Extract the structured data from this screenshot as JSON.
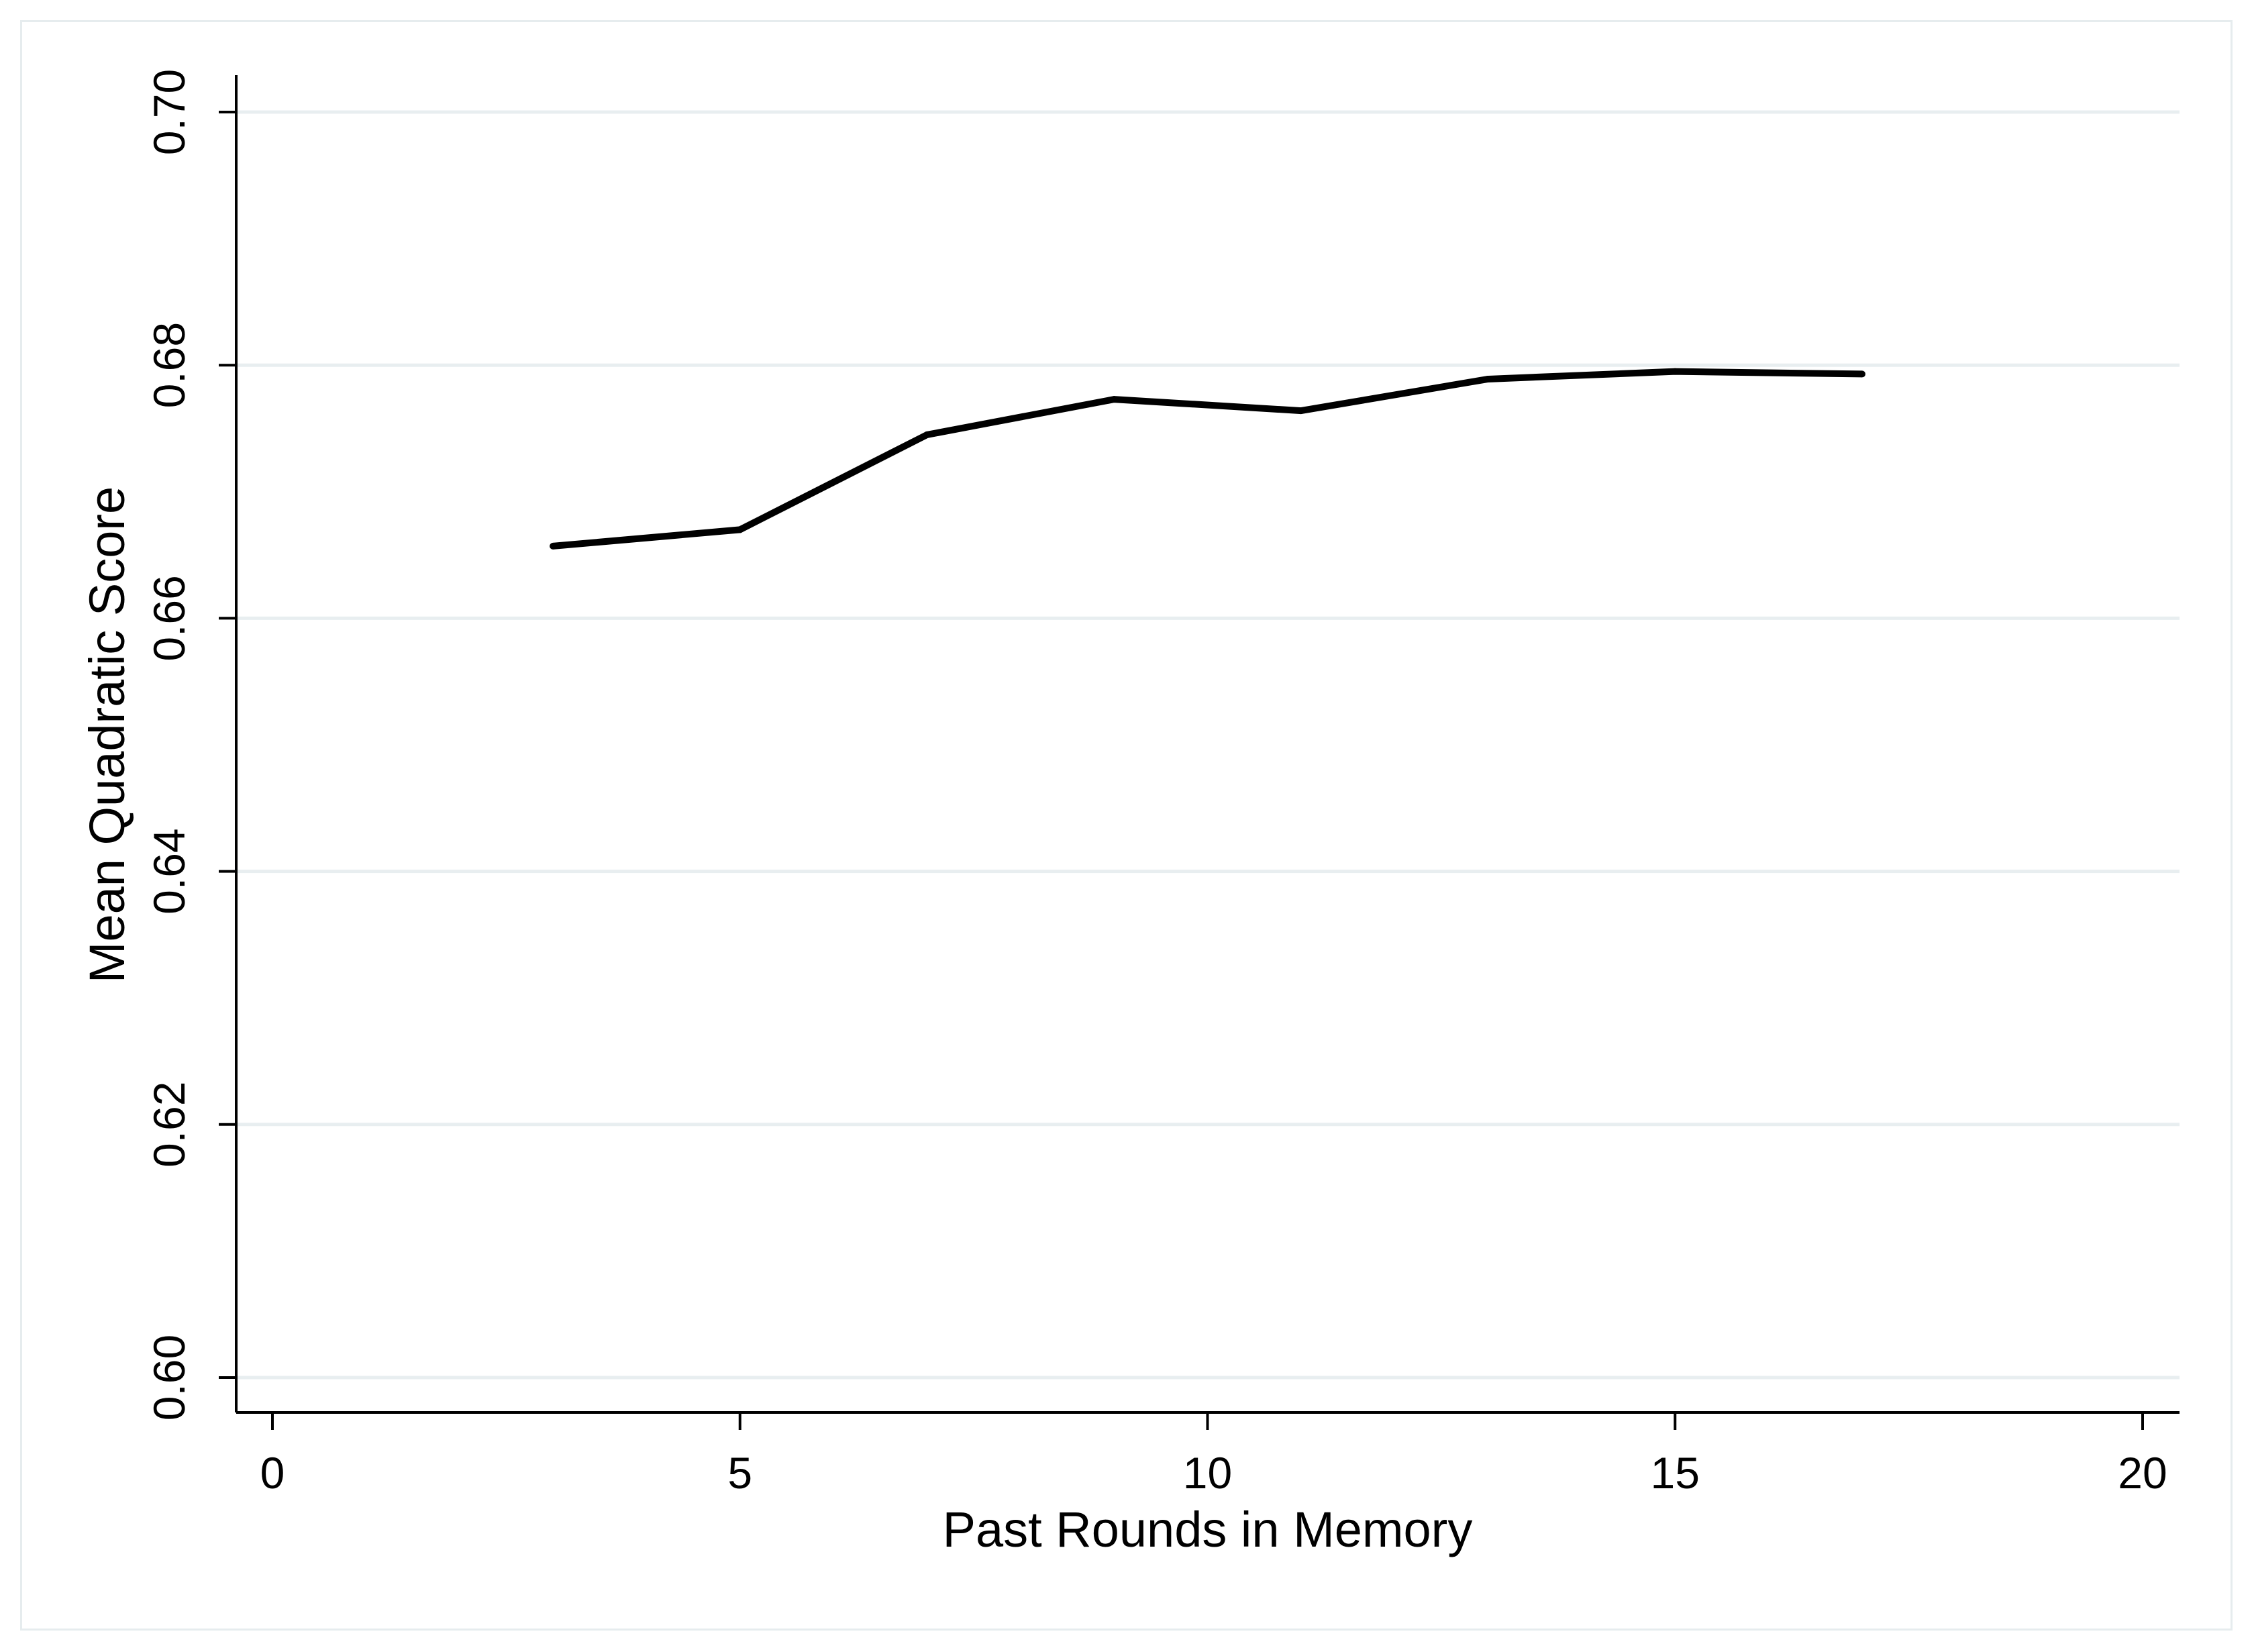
{
  "chart_data": {
    "type": "line",
    "title": "",
    "xlabel": "Past Rounds in Memory",
    "ylabel": "Mean Quadratic Score",
    "xlim": [
      0,
      20
    ],
    "ylim": [
      0.6,
      0.7
    ],
    "xticks": [
      "0",
      "5",
      "10",
      "15",
      "20"
    ],
    "yticks": [
      "0.60",
      "0.62",
      "0.64",
      "0.66",
      "0.68",
      "0.70"
    ],
    "grid": "horizontal",
    "series": [
      {
        "x": [
          3,
          5,
          7,
          9,
          11,
          13,
          15,
          17
        ],
        "y": [
          0.6657,
          0.667,
          0.6745,
          0.6773,
          0.6764,
          0.6789,
          0.6795,
          0.6793
        ]
      }
    ],
    "colors": {
      "line": "#000000",
      "grid": "#e8eef0",
      "axis": "#000000"
    }
  }
}
